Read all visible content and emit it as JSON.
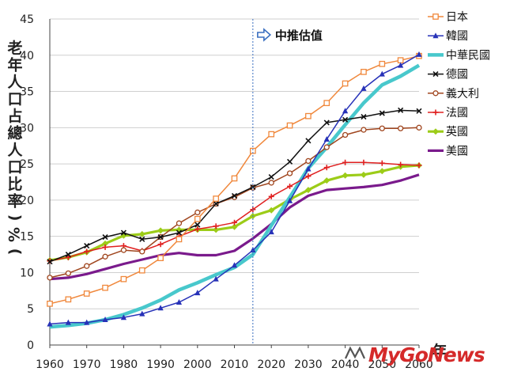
{
  "chart_data": {
    "type": "line",
    "title": "",
    "xlabel": "年",
    "ylabel": "老年人口占總人口比率(%)",
    "xlim": [
      1960,
      2060
    ],
    "ylim": [
      0,
      45
    ],
    "xticks": [
      1960,
      1970,
      1980,
      1990,
      2000,
      2010,
      2020,
      2030,
      2040,
      2050,
      2060
    ],
    "yticks": [
      0,
      5,
      10,
      15,
      20,
      25,
      30,
      35,
      40,
      45
    ],
    "grid": "horizontal",
    "legend": "right",
    "annotation": {
      "text": "中推估值",
      "x": 2015
    },
    "x": [
      1960,
      1965,
      1970,
      1975,
      1980,
      1985,
      1990,
      1995,
      2000,
      2005,
      2010,
      2015,
      2020,
      2025,
      2030,
      2035,
      2040,
      2045,
      2050,
      2055,
      2060
    ],
    "series": [
      {
        "name": "日本",
        "color": "#f0883c",
        "marker": "square-open",
        "values": [
          5.7,
          6.3,
          7.1,
          7.9,
          9.1,
          10.3,
          12.0,
          14.6,
          17.4,
          20.2,
          23.0,
          26.8,
          29.1,
          30.3,
          31.6,
          33.4,
          36.1,
          37.7,
          38.8,
          39.3,
          39.9
        ]
      },
      {
        "name": "韓國",
        "color": "#2732b8",
        "marker": "triangle",
        "values": [
          2.9,
          3.1,
          3.1,
          3.5,
          3.8,
          4.3,
          5.1,
          5.9,
          7.2,
          9.1,
          11.0,
          13.1,
          15.6,
          19.9,
          24.3,
          28.4,
          32.3,
          35.4,
          37.4,
          38.6,
          40.1
        ]
      },
      {
        "name": "中華民國",
        "color": "#48c8cc",
        "marker": "none",
        "thick": true,
        "values": [
          2.5,
          2.7,
          3.0,
          3.5,
          4.2,
          5.1,
          6.2,
          7.6,
          8.6,
          9.7,
          10.7,
          12.5,
          16.5,
          20.4,
          24.4,
          27.3,
          30.4,
          33.4,
          35.9,
          37.1,
          38.6
        ]
      },
      {
        "name": "德國",
        "color": "#111111",
        "marker": "x",
        "values": [
          11.5,
          12.5,
          13.7,
          14.9,
          15.5,
          14.6,
          14.9,
          15.5,
          16.6,
          19.5,
          20.6,
          21.8,
          23.2,
          25.3,
          28.2,
          30.7,
          31.1,
          31.5,
          32.0,
          32.4,
          32.3
        ]
      },
      {
        "name": "義大利",
        "color": "#a0461f",
        "marker": "circle-open",
        "values": [
          9.3,
          9.9,
          10.9,
          12.2,
          13.1,
          12.9,
          14.9,
          16.8,
          18.3,
          19.5,
          20.4,
          21.7,
          22.4,
          23.7,
          25.4,
          27.3,
          29.0,
          29.7,
          29.9,
          29.9,
          30.0
        ]
      },
      {
        "name": "法國",
        "color": "#e02020",
        "marker": "plus",
        "values": [
          11.6,
          12.1,
          12.9,
          13.5,
          13.7,
          13.0,
          13.9,
          15.0,
          16.0,
          16.4,
          16.9,
          18.7,
          20.5,
          21.9,
          23.3,
          24.5,
          25.2,
          25.2,
          25.1,
          24.9,
          24.8
        ]
      },
      {
        "name": "英國",
        "color": "#9ccc18",
        "marker": "diamond",
        "values": [
          11.7,
          12.1,
          12.8,
          14.0,
          15.1,
          15.3,
          15.8,
          15.9,
          15.9,
          15.9,
          16.3,
          17.8,
          18.6,
          20.1,
          21.4,
          22.7,
          23.4,
          23.5,
          24.0,
          24.6,
          24.8
        ]
      },
      {
        "name": "美國",
        "color": "#7a1a8c",
        "marker": "none",
        "values": [
          9.1,
          9.3,
          9.8,
          10.5,
          11.2,
          11.8,
          12.4,
          12.7,
          12.4,
          12.4,
          13.0,
          14.7,
          16.7,
          19.0,
          20.6,
          21.4,
          21.6,
          21.8,
          22.1,
          22.7,
          23.5
        ]
      }
    ]
  },
  "watermark": {
    "text": "MyGoNews"
  }
}
